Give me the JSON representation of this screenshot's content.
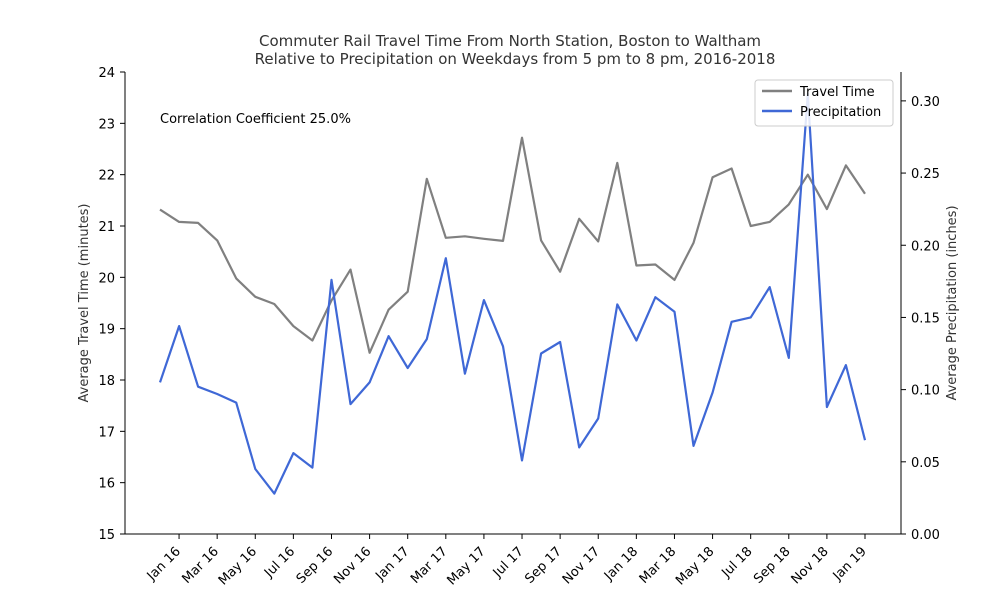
{
  "chart_data": {
    "type": "line",
    "title": "Commuter Rail Travel Time From North Station, Boston to Waltham",
    "subtitle": "Relative to Precipitation on Weekdays from 5 pm to 8 pm, 2016-2018",
    "xlabel": "",
    "ylabel": "Average Travel Time (minutes)",
    "y2label": "Average Precipitation (inches)",
    "ylim": [
      15,
      24
    ],
    "y2lim": [
      0,
      0.32
    ],
    "yticks": [
      15,
      16,
      17,
      18,
      19,
      20,
      21,
      22,
      23,
      24
    ],
    "y2ticks": [
      "0.00",
      "0.05",
      "0.10",
      "0.15",
      "0.20",
      "0.25",
      "0.30"
    ],
    "x": [
      "2015-12",
      "2016-01",
      "2016-02",
      "2016-03",
      "2016-04",
      "2016-05",
      "2016-06",
      "2016-07",
      "2016-08",
      "2016-09",
      "2016-10",
      "2016-11",
      "2016-12",
      "2017-01",
      "2017-02",
      "2017-03",
      "2017-04",
      "2017-05",
      "2017-06",
      "2017-07",
      "2017-08",
      "2017-09",
      "2017-10",
      "2017-11",
      "2017-12",
      "2018-01",
      "2018-02",
      "2018-03",
      "2018-04",
      "2018-05",
      "2018-06",
      "2018-07",
      "2018-08",
      "2018-09",
      "2018-10",
      "2018-11",
      "2018-12",
      "2019-01"
    ],
    "xtick_positions": [
      "2016-01",
      "2016-03",
      "2016-05",
      "2016-07",
      "2016-09",
      "2016-11",
      "2017-01",
      "2017-03",
      "2017-05",
      "2017-07",
      "2017-09",
      "2017-11",
      "2018-01",
      "2018-03",
      "2018-05",
      "2018-07",
      "2018-09",
      "2018-11",
      "2019-01"
    ],
    "xtick_labels": [
      "Jan 16",
      "Mar 16",
      "May 16",
      "Jul 16",
      "Sep 16",
      "Nov 16",
      "Jan 17",
      "Mar 17",
      "May 17",
      "Jul 17",
      "Sep 17",
      "Nov 17",
      "Jan 18",
      "Mar 18",
      "May 18",
      "Jul 18",
      "Sep 18",
      "Nov 18",
      "Jan 19"
    ],
    "series": [
      {
        "name": "Travel Time",
        "axis": "left",
        "color": "#808080",
        "values": [
          21.32,
          21.08,
          21.06,
          20.72,
          19.98,
          19.62,
          19.48,
          19.05,
          18.77,
          19.55,
          20.15,
          18.53,
          19.37,
          19.72,
          21.92,
          20.77,
          20.8,
          20.75,
          20.71,
          22.72,
          20.72,
          20.11,
          21.14,
          20.7,
          22.23,
          20.23,
          20.25,
          19.95,
          20.67,
          21.95,
          22.12,
          21.0,
          21.08,
          21.42,
          22.0,
          21.33,
          22.18,
          21.63
        ]
      },
      {
        "name": "Precipitation",
        "axis": "right",
        "color": "#3f68d6",
        "values": [
          0.105,
          0.144,
          0.102,
          0.097,
          0.091,
          0.045,
          0.028,
          0.056,
          0.046,
          0.176,
          0.09,
          0.105,
          0.137,
          0.115,
          0.135,
          0.191,
          0.111,
          0.162,
          0.13,
          0.051,
          0.125,
          0.133,
          0.06,
          0.08,
          0.159,
          0.134,
          0.164,
          0.154,
          0.061,
          0.098,
          0.147,
          0.15,
          0.171,
          0.122,
          0.305,
          0.088,
          0.117,
          0.065
        ]
      }
    ],
    "annotation": "Correlation Coefficient 25.0%",
    "legend_placement": "top-right",
    "grid": false
  }
}
